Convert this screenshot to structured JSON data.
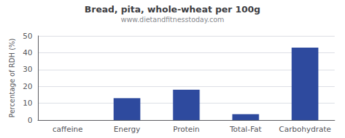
{
  "chart_data": {
    "type": "bar",
    "title": "Bread, pita, whole-wheat per 100g",
    "subtitle": "www.dietandfitnesstoday.com",
    "ylabel": "Percentage of RDH (%)",
    "categories": [
      "caffeine",
      "Energy",
      "Protein",
      "Total-Fat",
      "Carbohydrate"
    ],
    "values": [
      0,
      13,
      18,
      3.5,
      43
    ],
    "color": "#2e4a9e",
    "ylim": [
      0,
      50
    ],
    "yticks": [
      0,
      10,
      20,
      30,
      40,
      50
    ],
    "grid": true
  }
}
